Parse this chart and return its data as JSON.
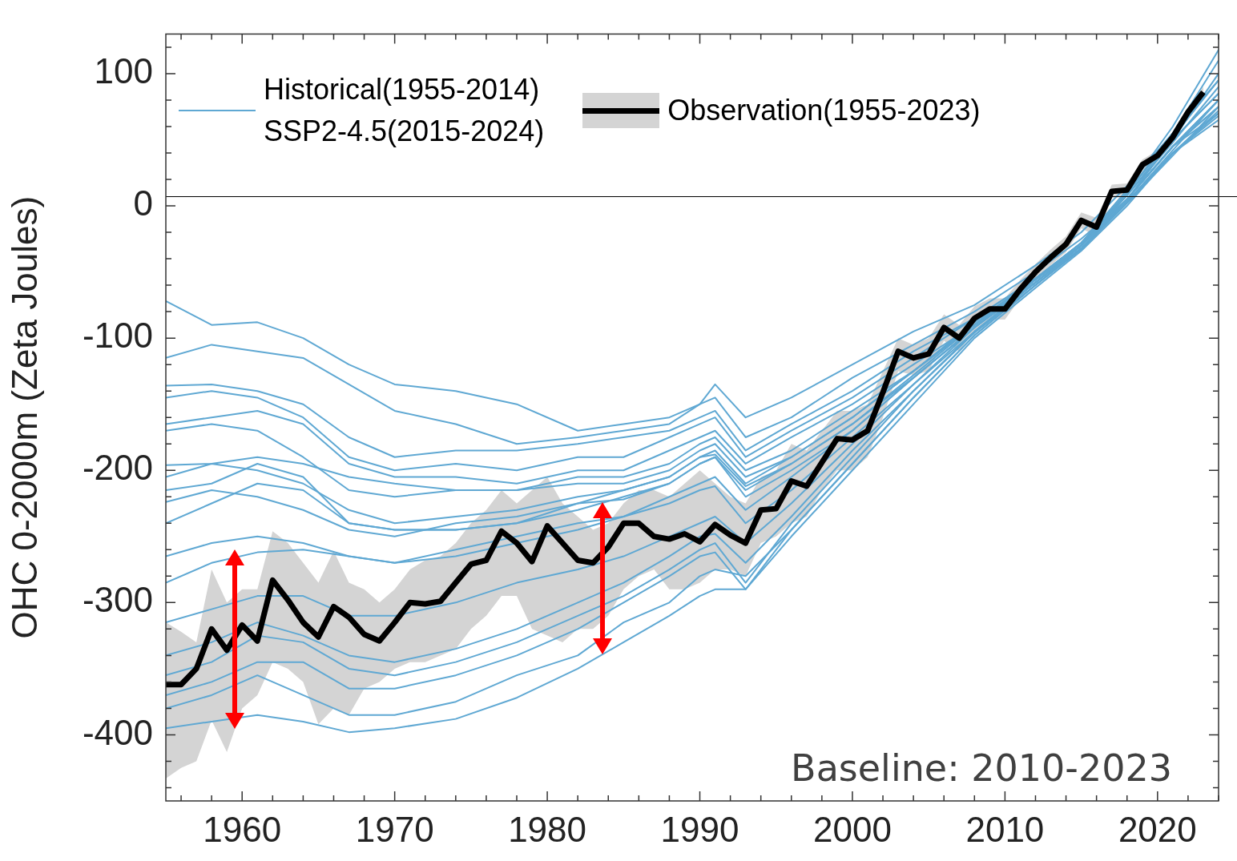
{
  "chart_data": {
    "type": "line",
    "ylabel": "OHC 0-2000m (Zeta Joules)",
    "legend": "top",
    "xlim": [
      1955,
      2024
    ],
    "ylim": [
      -450,
      130
    ],
    "xticks": [
      {
        "value": 1956,
        "label": null
      },
      {
        "value": 1958,
        "label": null
      },
      1960,
      {
        "value": 1962,
        "label": null
      },
      {
        "value": 1964,
        "label": null
      },
      {
        "value": 1966,
        "label": null
      },
      {
        "value": 1968,
        "label": null
      },
      1970,
      {
        "value": 1972,
        "label": null
      },
      {
        "value": 1974,
        "label": null
      },
      {
        "value": 1976,
        "label": null
      },
      {
        "value": 1978,
        "label": null
      },
      1980,
      {
        "value": 1982,
        "label": null
      },
      {
        "value": 1984,
        "label": null
      },
      {
        "value": 1986,
        "label": null
      },
      {
        "value": 1988,
        "label": null
      },
      1990,
      {
        "value": 1992,
        "label": null
      },
      {
        "value": 1994,
        "label": null
      },
      {
        "value": 1996,
        "label": null
      },
      {
        "value": 1998,
        "label": null
      },
      2000,
      {
        "value": 2002,
        "label": null
      },
      {
        "value": 2004,
        "label": null
      },
      {
        "value": 2006,
        "label": null
      },
      {
        "value": 2008,
        "label": null
      },
      2010,
      {
        "value": 2012,
        "label": null
      },
      {
        "value": 2014,
        "label": null
      },
      {
        "value": 2016,
        "label": null
      },
      {
        "value": 2018,
        "label": null
      },
      2020,
      {
        "value": 2022,
        "label": null
      },
      {
        "value": 2024,
        "label": null
      }
    ],
    "yticks": [
      {
        "value": -440,
        "label": null
      },
      {
        "value": -420,
        "label": null
      },
      -400,
      {
        "value": -380,
        "label": null
      },
      {
        "value": -360,
        "label": null
      },
      {
        "value": -340,
        "label": null
      },
      {
        "value": -320,
        "label": null
      },
      -300,
      {
        "value": -280,
        "label": null
      },
      {
        "value": -260,
        "label": null
      },
      {
        "value": -240,
        "label": null
      },
      {
        "value": -220,
        "label": null
      },
      -200,
      {
        "value": -180,
        "label": null
      },
      {
        "value": -160,
        "label": null
      },
      {
        "value": -140,
        "label": null
      },
      {
        "value": -120,
        "label": null
      },
      -100,
      {
        "value": -80,
        "label": null
      },
      {
        "value": -60,
        "label": null
      },
      {
        "value": -40,
        "label": null
      },
      {
        "value": -20,
        "label": null
      },
      0,
      {
        "value": 20,
        "label": null
      },
      {
        "value": 40,
        "label": null
      },
      {
        "value": 60,
        "label": null
      },
      {
        "value": 80,
        "label": null
      },
      100,
      {
        "value": 120,
        "label": null
      }
    ],
    "ref_lines": [
      {
        "axis": "y",
        "value": 7,
        "color": "#000000"
      }
    ],
    "annotations": [
      "Baseline: 2010-2023"
    ],
    "series": [
      {
        "name": "Observation(1955-2023)",
        "color": "#000000",
        "x": [
          1955,
          1956,
          1957,
          1958,
          1959,
          1960,
          1961,
          1962,
          1963,
          1964,
          1965,
          1966,
          1967,
          1968,
          1969,
          1970,
          1971,
          1972,
          1973,
          1974,
          1975,
          1976,
          1977,
          1978,
          1979,
          1980,
          1981,
          1982,
          1983,
          1984,
          1985,
          1986,
          1987,
          1988,
          1989,
          1990,
          1991,
          1992,
          1993,
          1994,
          1995,
          1996,
          1997,
          1998,
          1999,
          2000,
          2001,
          2002,
          2003,
          2004,
          2005,
          2006,
          2007,
          2008,
          2009,
          2010,
          2011,
          2012,
          2013,
          2014,
          2015,
          2016,
          2017,
          2018,
          2019,
          2020,
          2021,
          2022,
          2023
        ],
        "values": [
          -362,
          -362,
          -350,
          -320,
          -336,
          -317,
          -329,
          -283,
          -298,
          -315,
          -326,
          -303,
          -311,
          -324,
          -329,
          -315,
          -300,
          -301,
          -299,
          -285,
          -271,
          -268,
          -246,
          -255,
          -269,
          -242,
          -255,
          -268,
          -270,
          -258,
          -240,
          -240,
          -250,
          -252,
          -248,
          -254,
          -241,
          -249,
          -255,
          -230,
          -229,
          -208,
          -212,
          -194,
          -176,
          -177,
          -170,
          -141,
          -110,
          -115,
          -112,
          -92,
          -100,
          -85,
          -78,
          -78,
          -63,
          -50,
          -39,
          -29,
          -11,
          -16,
          11,
          12,
          31,
          38,
          52,
          71,
          86
        ],
        "upper": [
          -315,
          -322,
          -330,
          -275,
          -300,
          -290,
          -290,
          -246,
          -255,
          -270,
          -285,
          -261,
          -285,
          -290,
          -300,
          -290,
          -275,
          -268,
          -265,
          -255,
          -240,
          -230,
          -215,
          -225,
          -215,
          -205,
          -225,
          -235,
          -245,
          -240,
          -225,
          -215,
          -215,
          -220,
          -210,
          -200,
          -210,
          -220,
          -225,
          -205,
          -200,
          -180,
          -185,
          -170,
          -155,
          -155,
          -150,
          -125,
          -100,
          -105,
          -100,
          -82,
          -90,
          -76,
          -70,
          -70,
          -56,
          -44,
          -33,
          -23,
          -5,
          -9,
          16,
          17,
          35,
          42,
          56,
          75,
          90
        ],
        "lower": [
          -433,
          -425,
          -420,
          -389,
          -413,
          -380,
          -370,
          -345,
          -350,
          -360,
          -392,
          -380,
          -385,
          -365,
          -360,
          -350,
          -345,
          -345,
          -340,
          -335,
          -320,
          -310,
          -295,
          -295,
          -320,
          -325,
          -330,
          -320,
          -320,
          -310,
          -290,
          -280,
          -275,
          -290,
          -290,
          -285,
          -275,
          -275,
          -280,
          -255,
          -250,
          -240,
          -235,
          -215,
          -200,
          -200,
          -190,
          -160,
          -125,
          -128,
          -125,
          -102,
          -110,
          -94,
          -86,
          -86,
          -70,
          -56,
          -45,
          -35,
          -17,
          -23,
          6,
          7,
          27,
          34,
          48,
          67,
          82
        ]
      },
      {
        "name": "Historical(1955-2014)\nSSP2-4.5(2015-2024)",
        "color": "#5fa8d3",
        "x": [
          1955,
          1958,
          1961,
          1964,
          1967,
          1970,
          1974,
          1978,
          1982,
          1985,
          1988,
          1990,
          1991,
          1993,
          1996,
          2000,
          2004,
          2008,
          2012,
          2015,
          2018,
          2021,
          2024
        ],
        "values": [
          -72,
          -90,
          -88,
          -100,
          -120,
          -135,
          -140,
          -150,
          -170,
          -165,
          -160,
          -150,
          -135,
          -160,
          -145,
          -120,
          -95,
          -75,
          -45,
          -20,
          15,
          55,
          95
        ]
      },
      {
        "color": "#5fa8d3",
        "x": [
          1955,
          1958,
          1961,
          1964,
          1967,
          1970,
          1974,
          1978,
          1982,
          1985,
          1988,
          1990,
          1991,
          1993,
          1996,
          2000,
          2004,
          2008,
          2012,
          2015,
          2018,
          2021,
          2024
        ],
        "values": [
          -115,
          -105,
          -110,
          -115,
          -135,
          -155,
          -165,
          -180,
          -175,
          -170,
          -165,
          -150,
          -145,
          -175,
          -160,
          -130,
          -105,
          -80,
          -50,
          -25,
          5,
          50,
          85
        ]
      },
      {
        "color": "#5fa8d3",
        "x": [
          1955,
          1958,
          1961,
          1964,
          1967,
          1970,
          1974,
          1978,
          1982,
          1985,
          1988,
          1990,
          1991,
          1993,
          1996,
          2000,
          2004,
          2008,
          2012,
          2015,
          2018,
          2021,
          2024
        ],
        "values": [
          -136,
          -135,
          -140,
          -150,
          -175,
          -190,
          -185,
          -185,
          -180,
          -175,
          -170,
          -160,
          -155,
          -185,
          -165,
          -140,
          -110,
          -85,
          -55,
          -30,
          5,
          45,
          80
        ]
      },
      {
        "color": "#5fa8d3",
        "x": [
          1955,
          1958,
          1961,
          1964,
          1967,
          1970,
          1974,
          1978,
          1982,
          1985,
          1988,
          1990,
          1991,
          1993,
          1996,
          2000,
          2004,
          2008,
          2012,
          2015,
          2018,
          2021,
          2024
        ],
        "values": [
          -145,
          -140,
          -145,
          -160,
          -190,
          -200,
          -195,
          -200,
          -190,
          -190,
          -175,
          -165,
          -160,
          -190,
          -170,
          -145,
          -115,
          -85,
          -55,
          -28,
          8,
          48,
          90
        ]
      },
      {
        "color": "#5fa8d3",
        "x": [
          1955,
          1958,
          1961,
          1964,
          1967,
          1970,
          1974,
          1978,
          1982,
          1985,
          1988,
          1990,
          1991,
          1993,
          1996,
          2000,
          2004,
          2008,
          2012,
          2015,
          2018,
          2021,
          2024
        ],
        "values": [
          -165,
          -160,
          -155,
          -165,
          -195,
          -205,
          -205,
          -210,
          -200,
          -200,
          -185,
          -175,
          -170,
          -195,
          -175,
          -150,
          -120,
          -90,
          -55,
          -30,
          5,
          45,
          75
        ]
      },
      {
        "color": "#5fa8d3",
        "x": [
          1955,
          1958,
          1961,
          1964,
          1967,
          1970,
          1974,
          1978,
          1982,
          1985,
          1988,
          1990,
          1991,
          1993,
          1996,
          2000,
          2004,
          2008,
          2012,
          2015,
          2018,
          2021,
          2024
        ],
        "values": [
          -170,
          -165,
          -170,
          -190,
          -215,
          -220,
          -215,
          -215,
          -205,
          -205,
          -195,
          -180,
          -175,
          -200,
          -185,
          -155,
          -125,
          -90,
          -58,
          -32,
          3,
          40,
          70
        ]
      },
      {
        "color": "#5fa8d3",
        "x": [
          1955,
          1958,
          1961,
          1964,
          1967,
          1970,
          1974,
          1978,
          1982,
          1985,
          1988,
          1990,
          1991,
          1993,
          1996,
          2000,
          2004,
          2008,
          2012,
          2015,
          2018,
          2021,
          2024
        ],
        "values": [
          -196,
          -195,
          -190,
          -195,
          -205,
          -210,
          -215,
          -215,
          -210,
          -210,
          -200,
          -185,
          -180,
          -205,
          -190,
          -160,
          -125,
          -88,
          -55,
          -28,
          10,
          52,
          95
        ]
      },
      {
        "color": "#5fa8d3",
        "x": [
          1955,
          1958,
          1961,
          1964,
          1967,
          1970,
          1974,
          1978,
          1982,
          1985,
          1988,
          1990,
          1991,
          1993,
          1996,
          2000,
          2004,
          2008,
          2012,
          2015,
          2018,
          2021,
          2024
        ],
        "values": [
          -205,
          -195,
          -200,
          -210,
          -230,
          -240,
          -235,
          -230,
          -220,
          -215,
          -205,
          -190,
          -185,
          -210,
          -190,
          -160,
          -125,
          -90,
          -56,
          -30,
          8,
          50,
          100
        ]
      },
      {
        "color": "#5fa8d3",
        "x": [
          1955,
          1958,
          1961,
          1964,
          1967,
          1970,
          1974,
          1978,
          1982,
          1985,
          1988,
          1990,
          1991,
          1993,
          1996,
          2000,
          2004,
          2008,
          2012,
          2015,
          2018,
          2021,
          2024
        ],
        "values": [
          -215,
          -210,
          -195,
          -205,
          -240,
          -245,
          -245,
          -240,
          -230,
          -220,
          -210,
          -195,
          -190,
          -215,
          -195,
          -165,
          -130,
          -92,
          -58,
          -30,
          10,
          55,
          110
        ]
      },
      {
        "color": "#5fa8d3",
        "x": [
          1955,
          1958,
          1961,
          1964,
          1967,
          1970,
          1974,
          1978,
          1982,
          1985,
          1988,
          1990,
          1991,
          1993,
          1996,
          2000,
          2004,
          2008,
          2012,
          2015,
          2018,
          2021,
          2024
        ],
        "values": [
          -224,
          -215,
          -220,
          -230,
          -245,
          -250,
          -240,
          -235,
          -225,
          -215,
          -205,
          -190,
          -188,
          -212,
          -195,
          -165,
          -128,
          -90,
          -55,
          -28,
          12,
          60,
          118
        ]
      },
      {
        "color": "#5fa8d3",
        "x": [
          1955,
          1958,
          1961,
          1964,
          1967,
          1970,
          1974,
          1978,
          1982,
          1985,
          1988,
          1990,
          1991,
          1993,
          1996,
          2000,
          2004,
          2008,
          2012,
          2015,
          2018,
          2021,
          2024
        ],
        "values": [
          -240,
          -225,
          -210,
          -215,
          -240,
          -245,
          -245,
          -240,
          -225,
          -222,
          -210,
          -195,
          -190,
          -220,
          -200,
          -170,
          -130,
          -92,
          -58,
          -30,
          8,
          50,
          85
        ]
      },
      {
        "color": "#5fa8d3",
        "x": [
          1955,
          1958,
          1961,
          1964,
          1967,
          1970,
          1974,
          1978,
          1982,
          1985,
          1988,
          1990,
          1991,
          1993,
          1996,
          2000,
          2004,
          2008,
          2012,
          2015,
          2018,
          2021,
          2024
        ],
        "values": [
          -265,
          -255,
          -250,
          -255,
          -265,
          -270,
          -265,
          -255,
          -245,
          -235,
          -220,
          -210,
          -205,
          -230,
          -205,
          -170,
          -130,
          -92,
          -58,
          -30,
          5,
          45,
          70
        ]
      },
      {
        "color": "#5fa8d3",
        "x": [
          1955,
          1958,
          1961,
          1964,
          1967,
          1970,
          1974,
          1978,
          1982,
          1985,
          1988,
          1990,
          1991,
          1993,
          1996,
          2000,
          2004,
          2008,
          2012,
          2015,
          2018,
          2021,
          2024
        ],
        "values": [
          -285,
          -270,
          -262,
          -260,
          -265,
          -270,
          -260,
          -250,
          -240,
          -235,
          -225,
          -215,
          -212,
          -240,
          -215,
          -175,
          -135,
          -92,
          -56,
          -28,
          5,
          45,
          80
        ]
      },
      {
        "color": "#5fa8d3",
        "x": [
          1955,
          1958,
          1961,
          1964,
          1967,
          1970,
          1974,
          1978,
          1982,
          1985,
          1988,
          1990,
          1991,
          1993,
          1996,
          2000,
          2004,
          2008,
          2012,
          2015,
          2018,
          2021,
          2024
        ],
        "values": [
          -315,
          -305,
          -295,
          -295,
          -310,
          -310,
          -300,
          -285,
          -275,
          -265,
          -250,
          -240,
          -235,
          -255,
          -225,
          -180,
          -135,
          -95,
          -58,
          -30,
          5,
          45,
          75
        ]
      },
      {
        "color": "#5fa8d3",
        "x": [
          1955,
          1958,
          1961,
          1964,
          1967,
          1970,
          1974,
          1978,
          1982,
          1985,
          1988,
          1990,
          1991,
          1993,
          1996,
          2000,
          2004,
          2008,
          2012,
          2015,
          2018,
          2021,
          2024
        ],
        "values": [
          -340,
          -330,
          -315,
          -325,
          -340,
          -345,
          -335,
          -320,
          -300,
          -285,
          -265,
          -250,
          -248,
          -270,
          -235,
          -185,
          -140,
          -95,
          -58,
          -30,
          3,
          40,
          68
        ]
      },
      {
        "color": "#5fa8d3",
        "x": [
          1955,
          1958,
          1961,
          1964,
          1967,
          1970,
          1974,
          1978,
          1982,
          1985,
          1988,
          1990,
          1991,
          1993,
          1996,
          2000,
          2004,
          2008,
          2012,
          2015,
          2018,
          2021,
          2024
        ],
        "values": [
          -355,
          -345,
          -325,
          -330,
          -350,
          -355,
          -345,
          -330,
          -310,
          -295,
          -275,
          -260,
          -255,
          -285,
          -240,
          -190,
          -140,
          -96,
          -60,
          -32,
          3,
          40,
          65
        ]
      },
      {
        "color": "#5fa8d3",
        "x": [
          1955,
          1958,
          1961,
          1964,
          1967,
          1970,
          1974,
          1978,
          1982,
          1985,
          1988,
          1990,
          1991,
          1993,
          1996,
          2000,
          2004,
          2008,
          2012,
          2015,
          2018,
          2021,
          2024
        ],
        "values": [
          -370,
          -360,
          -345,
          -345,
          -365,
          -365,
          -355,
          -340,
          -320,
          -300,
          -280,
          -265,
          -262,
          -290,
          -245,
          -195,
          -145,
          -98,
          -60,
          -33,
          2,
          38,
          75
        ]
      },
      {
        "color": "#5fa8d3",
        "x": [
          1955,
          1958,
          1961,
          1964,
          1967,
          1970,
          1974,
          1978,
          1982,
          1985,
          1988,
          1990,
          1991,
          1993,
          1996,
          2000,
          2004,
          2008,
          2012,
          2015,
          2018,
          2021,
          2024
        ],
        "values": [
          -380,
          -370,
          -355,
          -370,
          -385,
          -385,
          -375,
          -355,
          -340,
          -315,
          -300,
          -280,
          -275,
          -280,
          -245,
          -195,
          -145,
          -98,
          -60,
          -32,
          3,
          42,
          80
        ]
      },
      {
        "color": "#5fa8d3",
        "x": [
          1955,
          1958,
          1961,
          1964,
          1967,
          1970,
          1974,
          1978,
          1982,
          1985,
          1988,
          1990,
          1991,
          1993,
          1996,
          2000,
          2004,
          2008,
          2012,
          2015,
          2018,
          2021,
          2024
        ],
        "values": [
          -395,
          -390,
          -385,
          -390,
          -398,
          -395,
          -388,
          -372,
          -350,
          -330,
          -310,
          -295,
          -290,
          -290,
          -250,
          -200,
          -150,
          -100,
          -62,
          -34,
          0,
          40,
          72
        ]
      }
    ]
  }
}
